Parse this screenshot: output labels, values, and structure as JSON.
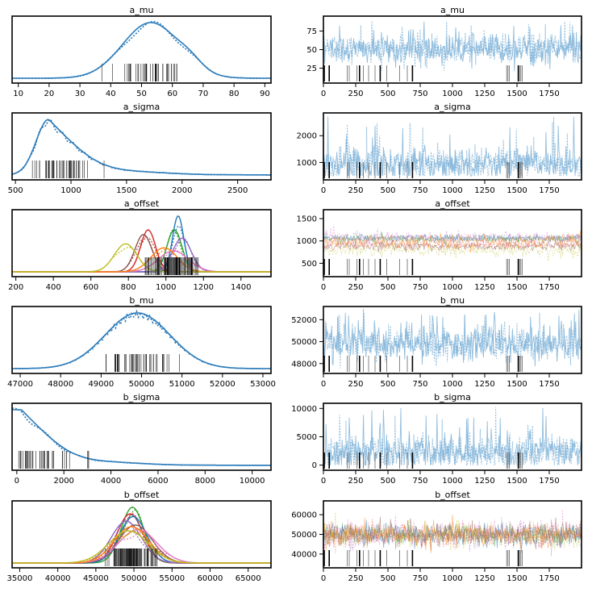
{
  "figure": {
    "background": "#ffffff",
    "rows": 6
  },
  "colors": {
    "kde": "#2b7bba",
    "trace": "#7fb3d8",
    "rug": "#000000",
    "offset_series": [
      "#2ca02c",
      "#d62728",
      "#1f77b4",
      "#9467bd",
      "#8c564b",
      "#e377c2",
      "#ff7f0e",
      "#bcbd22"
    ]
  },
  "chart_data": [
    {
      "type": "line",
      "variant": "kde",
      "title": "a_mu",
      "xticks": [
        10,
        20,
        30,
        40,
        50,
        60,
        70,
        80,
        90
      ],
      "xlim": [
        8,
        92
      ],
      "curve": {
        "mean": 53,
        "sd": 9.2,
        "right_shoulder": 66
      }
    },
    {
      "type": "line",
      "variant": "trace",
      "title": "a_mu",
      "xticks": [
        0,
        250,
        500,
        750,
        1000,
        1250,
        1500,
        1750
      ],
      "xlim": [
        0,
        2000
      ],
      "yticks": [
        25,
        50,
        75
      ],
      "ylim": [
        5,
        95
      ],
      "trace": {
        "mean": 50,
        "sd": 10,
        "low": 12,
        "high": 90
      }
    },
    {
      "type": "line",
      "variant": "kde",
      "title": "a_sigma",
      "xticks": [
        500,
        1000,
        1500,
        2000,
        2500
      ],
      "xlim": [
        470,
        2800
      ],
      "curve": {
        "mode": 800,
        "skew": "right"
      }
    },
    {
      "type": "line",
      "variant": "trace",
      "title": "a_sigma",
      "xticks": [
        0,
        250,
        500,
        750,
        1000,
        1250,
        1500,
        1750
      ],
      "xlim": [
        0,
        2000
      ],
      "yticks": [
        1000,
        2000
      ],
      "ylim": [
        350,
        2850
      ],
      "trace": {
        "mean": 950,
        "sd": 300,
        "low": 500,
        "high": 2750
      }
    },
    {
      "type": "line",
      "variant": "kde",
      "title": "a_offset",
      "xticks": [
        200,
        400,
        600,
        800,
        1000,
        1200,
        1400
      ],
      "xlim": [
        180,
        1560
      ],
      "series": [
        {
          "mean": 1045,
          "sd": 40
        },
        {
          "mean": 905,
          "sd": 40
        },
        {
          "mean": 1065,
          "sd": 30
        },
        {
          "mean": 1085,
          "sd": 50
        },
        {
          "mean": 880,
          "sd": 45
        },
        {
          "mean": 1040,
          "sd": 80
        },
        {
          "mean": 990,
          "sd": 70
        },
        {
          "mean": 785,
          "sd": 60
        }
      ]
    },
    {
      "type": "line",
      "variant": "trace",
      "title": "a_offset",
      "xticks": [
        0,
        250,
        500,
        750,
        1000,
        1250,
        1500,
        1750
      ],
      "xlim": [
        0,
        2000
      ],
      "yticks": [
        500,
        1000,
        1500
      ],
      "ylim": [
        200,
        1700
      ],
      "series": [
        {
          "mean": 1045,
          "sd": 45
        },
        {
          "mean": 905,
          "sd": 45
        },
        {
          "mean": 1065,
          "sd": 35
        },
        {
          "mean": 1085,
          "sd": 55
        },
        {
          "mean": 880,
          "sd": 50
        },
        {
          "mean": 1040,
          "sd": 85
        },
        {
          "mean": 990,
          "sd": 75
        },
        {
          "mean": 785,
          "sd": 75
        }
      ]
    },
    {
      "type": "line",
      "variant": "kde",
      "title": "b_mu",
      "xticks": [
        47000,
        48000,
        49000,
        50000,
        51000,
        52000,
        53000
      ],
      "xlim": [
        46800,
        53200
      ],
      "curve": {
        "mean": 49900,
        "sd": 800
      }
    },
    {
      "type": "line",
      "variant": "trace",
      "title": "b_mu",
      "xticks": [
        0,
        250,
        500,
        750,
        1000,
        1250,
        1500,
        1750
      ],
      "xlim": [
        0,
        2000
      ],
      "yticks": [
        48000,
        50000,
        52000
      ],
      "ylim": [
        47100,
        53200
      ],
      "trace": {
        "mean": 49800,
        "sd": 800,
        "low": 47500,
        "high": 53000
      }
    },
    {
      "type": "line",
      "variant": "kde",
      "title": "b_sigma",
      "xticks": [
        0,
        2000,
        4000,
        6000,
        8000,
        10000
      ],
      "xlim": [
        -200,
        10800
      ],
      "curve": {
        "mode": 200,
        "skew": "right"
      }
    },
    {
      "type": "line",
      "variant": "trace",
      "title": "b_sigma",
      "xticks": [
        0,
        250,
        500,
        750,
        1000,
        1250,
        1500,
        1750
      ],
      "xlim": [
        0,
        2000
      ],
      "yticks": [
        0,
        5000,
        10000
      ],
      "ylim": [
        -900,
        10900
      ],
      "trace": {
        "mean": 2200,
        "sd": 1500,
        "low": 0,
        "high": 10500
      }
    },
    {
      "type": "line",
      "variant": "kde",
      "title": "b_offset",
      "xticks": [
        35000,
        40000,
        45000,
        50000,
        55000,
        60000,
        65000
      ],
      "xlim": [
        34000,
        68000
      ],
      "series": [
        {
          "mean": 49800,
          "sd": 1500
        },
        {
          "mean": 49500,
          "sd": 1700
        },
        {
          "mean": 49900,
          "sd": 1800
        },
        {
          "mean": 49000,
          "sd": 2000
        },
        {
          "mean": 50200,
          "sd": 2200
        },
        {
          "mean": 50500,
          "sd": 2500
        },
        {
          "mean": 49700,
          "sd": 2300
        },
        {
          "mean": 49300,
          "sd": 2600
        }
      ]
    },
    {
      "type": "line",
      "variant": "trace",
      "title": "b_offset",
      "xticks": [
        0,
        250,
        500,
        750,
        1000,
        1250,
        1500,
        1750
      ],
      "xlim": [
        0,
        2000
      ],
      "yticks": [
        40000,
        50000,
        60000
      ],
      "ylim": [
        33000,
        67000
      ],
      "series": [
        {
          "mean": 49800,
          "sd": 2500
        },
        {
          "mean": 49500,
          "sd": 2700
        },
        {
          "mean": 49900,
          "sd": 2800
        },
        {
          "mean": 49000,
          "sd": 3000
        },
        {
          "mean": 50200,
          "sd": 3200
        },
        {
          "mean": 50500,
          "sd": 3400
        },
        {
          "mean": 49700,
          "sd": 3100
        },
        {
          "mean": 49300,
          "sd": 3300
        }
      ]
    }
  ],
  "rug": {
    "divergence_draws": [
      45,
      185,
      200,
      260,
      280,
      310,
      350,
      400,
      440,
      490,
      590,
      650,
      690,
      1420,
      1430,
      1440,
      1510,
      1520,
      1530,
      1540
    ]
  }
}
